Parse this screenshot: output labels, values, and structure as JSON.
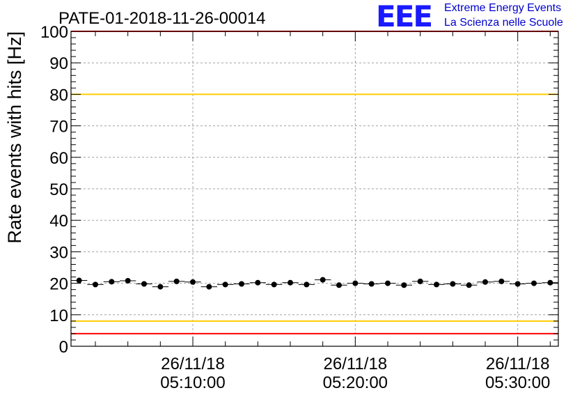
{
  "logo": {
    "mark": "EEE",
    "line1": "Extreme Energy Events",
    "line2": "La Scienza nelle Scuole"
  },
  "chart_data": {
    "type": "scatter",
    "title": "PATE-01-2018-11-26-00014",
    "xlabel": "",
    "ylabel": "Rate events with hits [Hz]",
    "ylim": [
      0,
      100
    ],
    "yticks": [
      0,
      10,
      20,
      30,
      40,
      50,
      60,
      70,
      80,
      90,
      100
    ],
    "xlim": [
      "26/11/18 05:02:30",
      "26/11/18 05:32:30"
    ],
    "xticks": [
      {
        "date": "26/11/18",
        "time": "05:10:00"
      },
      {
        "date": "26/11/18",
        "time": "05:20:00"
      },
      {
        "date": "26/11/18",
        "time": "05:30:00"
      }
    ],
    "grid": true,
    "reference_lines": [
      {
        "y": 100,
        "color": "#ff0000"
      },
      {
        "y": 80,
        "color": "#ffcc00"
      },
      {
        "y": 8,
        "color": "#ffcc00"
      },
      {
        "y": 4,
        "color": "#ff0000"
      }
    ],
    "series": [
      {
        "color": "#000000",
        "x": [
          "05:03:00",
          "05:04:00",
          "05:05:00",
          "05:06:00",
          "05:07:00",
          "05:08:00",
          "05:09:00",
          "05:10:00",
          "05:11:00",
          "05:12:00",
          "05:13:00",
          "05:14:00",
          "05:15:00",
          "05:16:00",
          "05:17:00",
          "05:18:00",
          "05:19:00",
          "05:20:00",
          "05:21:00",
          "05:22:00",
          "05:23:00",
          "05:24:00",
          "05:25:00",
          "05:26:00",
          "05:27:00",
          "05:28:00",
          "05:29:00",
          "05:30:00",
          "05:31:00",
          "05:32:00"
        ],
        "y": [
          20.9,
          19.6,
          20.5,
          20.8,
          19.8,
          18.9,
          20.6,
          20.4,
          18.9,
          19.6,
          19.8,
          20.2,
          19.6,
          20.2,
          19.6,
          21.1,
          19.4,
          20.0,
          19.8,
          20.0,
          19.4,
          20.6,
          19.6,
          19.8,
          19.4,
          20.4,
          20.6,
          19.8,
          20.0,
          20.2
        ],
        "errors": [
          0.6,
          0.6,
          0.6,
          0.6,
          0.6,
          0.6,
          0.6,
          0.6,
          0.6,
          0.6,
          0.6,
          0.6,
          0.6,
          0.6,
          0.6,
          0.6,
          0.6,
          0.6,
          0.6,
          0.6,
          0.6,
          0.6,
          0.6,
          0.6,
          0.6,
          0.6,
          0.6,
          0.6,
          0.6,
          0.6
        ]
      }
    ]
  }
}
